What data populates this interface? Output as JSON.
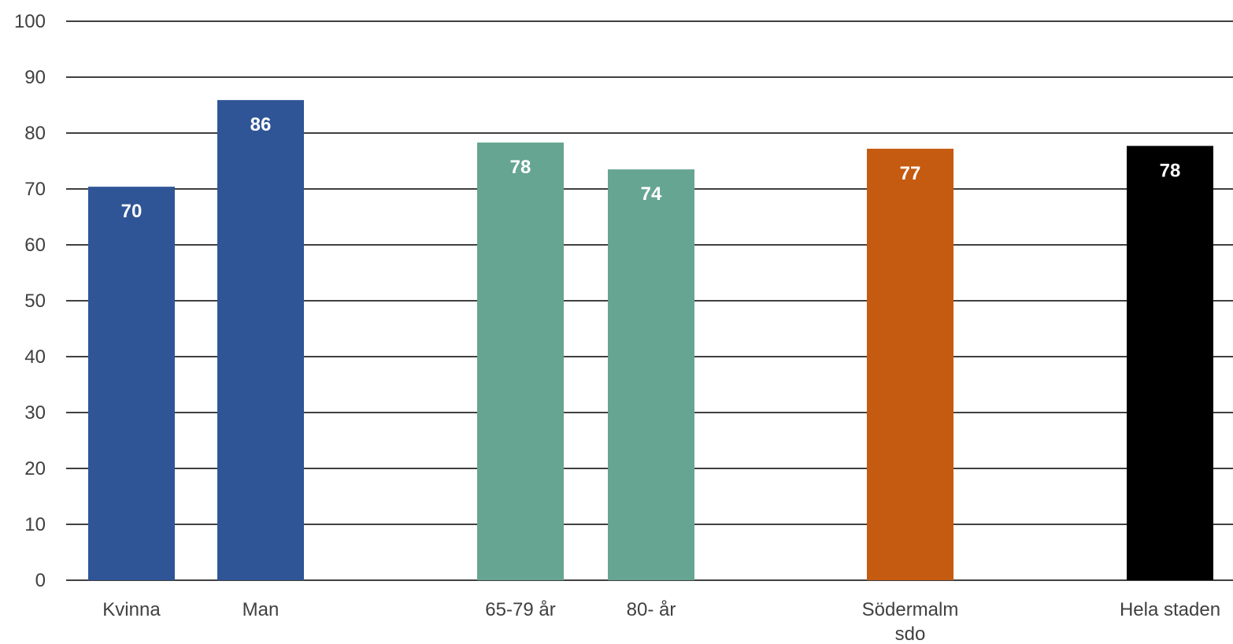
{
  "chart_data": {
    "type": "bar",
    "title": "",
    "xlabel": "",
    "ylabel": "",
    "ylim": [
      0,
      100
    ],
    "yticks": [
      0,
      10,
      20,
      30,
      40,
      50,
      60,
      70,
      80,
      90,
      100
    ],
    "grid": true,
    "legend": "none",
    "categories": [
      {
        "label": [
          "Kvinna"
        ],
        "value": 70.4,
        "display": "70",
        "color": "#2F5597"
      },
      {
        "label": [
          "Man"
        ],
        "value": 85.9,
        "display": "86",
        "color": "#2F5597"
      },
      {
        "label": [
          "65-79 år"
        ],
        "value": 78.3,
        "display": "78",
        "color": "#66A592"
      },
      {
        "label": [
          "80- år"
        ],
        "value": 73.5,
        "display": "74",
        "color": "#66A592"
      },
      {
        "label": [
          "Södermalm",
          "sdo"
        ],
        "value": 77.2,
        "display": "77",
        "color": "#C55A11"
      },
      {
        "label": [
          "Hela staden"
        ],
        "value": 77.7,
        "display": "78",
        "color": "#000000"
      }
    ]
  }
}
